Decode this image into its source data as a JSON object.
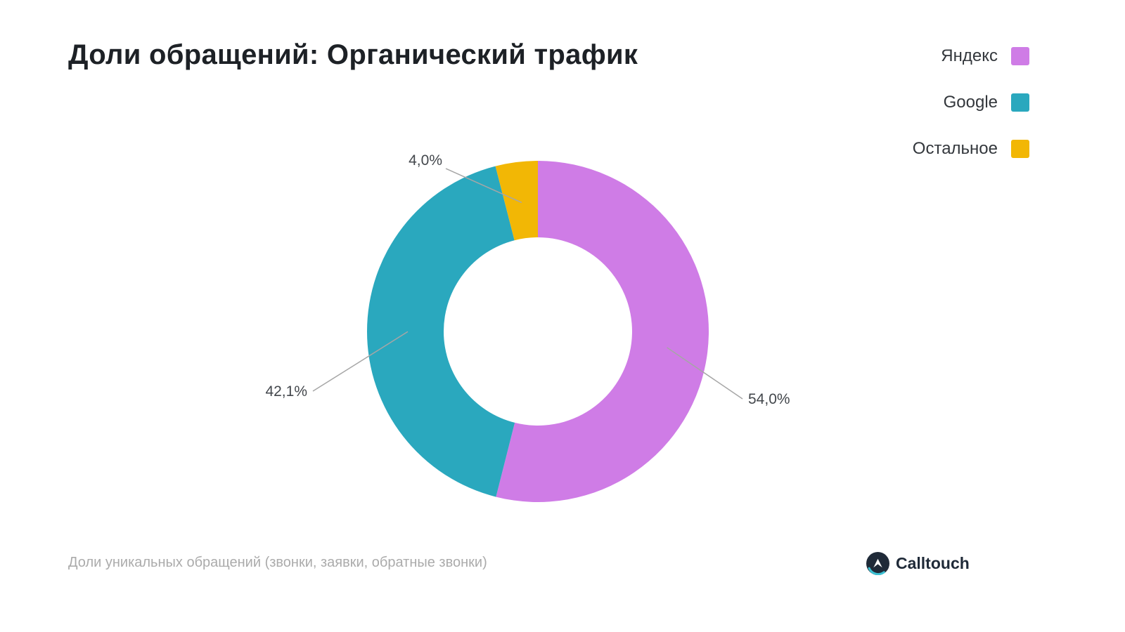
{
  "page": {
    "title": "Доли обращений: Органический трафик",
    "footnote": "Доли уникальных обращений (звонки, заявки, обратные звонки)",
    "brand_name": "Calltouch"
  },
  "chart_data": {
    "type": "pie",
    "subtype": "donut",
    "title": "Доли обращений: Органический трафик",
    "categories": [
      "Яндекс",
      "Google",
      "Остальное"
    ],
    "values": [
      54.0,
      42.1,
      4.0
    ],
    "value_labels": [
      "54,0%",
      "42,1%",
      "4,0%"
    ],
    "colors": [
      "#CF7CE6",
      "#2AA8BE",
      "#F2B705"
    ],
    "start_angle_deg": 0,
    "direction": "clockwise",
    "donut_hole_ratio": 0.55,
    "legend_position": "top-right",
    "legend": [
      "Яндекс",
      "Google",
      "Остальное"
    ]
  },
  "colors": {
    "title_text": "#1D2126",
    "legend_text": "#33373C",
    "slice_label_text": "#43474C",
    "leader_line": "#A6A6A6",
    "footnote_text": "#ABABAB",
    "brand_dark": "#1F2A38",
    "brand_teal": "#3DC1D3"
  }
}
